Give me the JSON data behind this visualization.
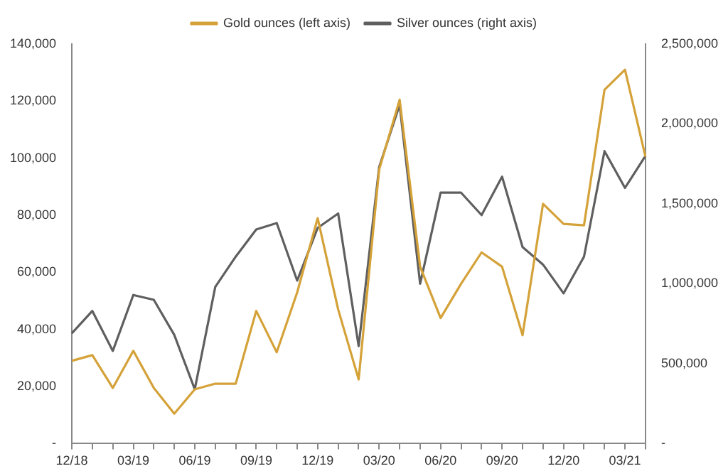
{
  "chart_data": {
    "type": "line",
    "categories": [
      "12/18",
      null,
      null,
      "03/19",
      null,
      null,
      "06/19",
      null,
      null,
      "09/19",
      null,
      null,
      "12/19",
      null,
      null,
      "03/20",
      null,
      null,
      "06/20",
      null,
      null,
      "09/20",
      null,
      null,
      "12/20",
      null,
      null,
      "03/21",
      null
    ],
    "series": [
      {
        "name": "Gold ounces (left axis)",
        "color": "#d4a238",
        "axis": "y",
        "values": [
          29000,
          31000,
          19500,
          32500,
          19500,
          10500,
          19000,
          21000,
          21000,
          46500,
          32000,
          53000,
          79000,
          47000,
          22500,
          96000,
          120500,
          62000,
          44000,
          56000,
          67000,
          62000,
          38000,
          84000,
          77000,
          76500,
          124000,
          131000,
          100500
        ]
      },
      {
        "name": "Silver ounces (right axis)",
        "color": "#5f5f5f",
        "axis": "y2",
        "values": [
          690000,
          830000,
          580000,
          930000,
          900000,
          680000,
          340000,
          980000,
          1170000,
          1340000,
          1380000,
          1020000,
          1350000,
          1440000,
          610000,
          1730000,
          2120000,
          1000000,
          1570000,
          1570000,
          1430000,
          1670000,
          1230000,
          1120000,
          940000,
          1170000,
          1830000,
          1600000,
          1800000
        ]
      }
    ],
    "ylim": [
      0,
      140000
    ],
    "yticks": [
      {
        "value": 0,
        "label": "-"
      },
      {
        "value": 20000,
        "label": "20,000"
      },
      {
        "value": 40000,
        "label": "40,000"
      },
      {
        "value": 60000,
        "label": "60,000"
      },
      {
        "value": 80000,
        "label": "80,000"
      },
      {
        "value": 100000,
        "label": "100,000"
      },
      {
        "value": 120000,
        "label": "120,000"
      },
      {
        "value": 140000,
        "label": "140,000"
      }
    ],
    "y2lim": [
      0,
      2500000
    ],
    "y2ticks": [
      {
        "value": 0,
        "label": "-"
      },
      {
        "value": 500000,
        "label": "500,000"
      },
      {
        "value": 1000000,
        "label": "1,000,000"
      },
      {
        "value": 1500000,
        "label": "1,500,000"
      },
      {
        "value": 2000000,
        "label": "2,000,000"
      },
      {
        "value": 2500000,
        "label": "2,500,000"
      }
    ],
    "grid": false,
    "legend": "top",
    "marker": "none",
    "line_style": "solid"
  }
}
